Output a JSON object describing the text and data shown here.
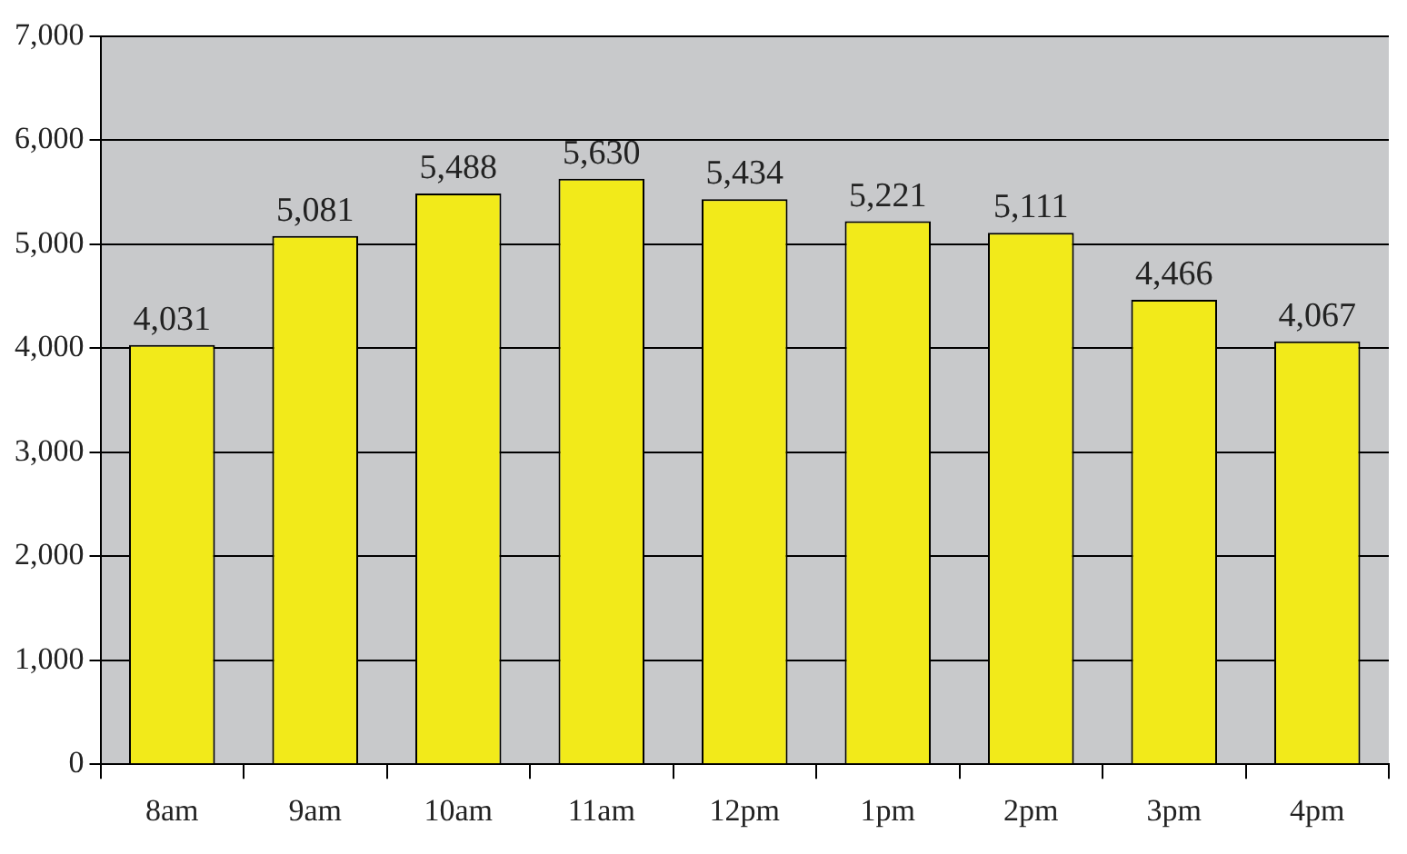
{
  "chart_data": {
    "type": "bar",
    "categories": [
      "8am",
      "9am",
      "10am",
      "11am",
      "12pm",
      "1pm",
      "2pm",
      "3pm",
      "4pm"
    ],
    "values": [
      4031,
      5081,
      5488,
      5630,
      5434,
      5221,
      5111,
      4466,
      4067
    ],
    "value_labels": [
      "4,031",
      "5,081",
      "5,488",
      "5,630",
      "5,434",
      "5,221",
      "5,111",
      "4,466",
      "4,067"
    ],
    "color": "#f2ea1a",
    "ylim": [
      0,
      7000
    ],
    "yticks": [
      {
        "value": 0,
        "label": "0"
      },
      {
        "value": 1000,
        "label": "1,000"
      },
      {
        "value": 2000,
        "label": "2,000"
      },
      {
        "value": 3000,
        "label": "3,000"
      },
      {
        "value": 4000,
        "label": "4,000"
      },
      {
        "value": 5000,
        "label": "5,000"
      },
      {
        "value": 6000,
        "label": "6,000"
      },
      {
        "value": 7000,
        "label": "7,000"
      }
    ],
    "grid": "y"
  }
}
